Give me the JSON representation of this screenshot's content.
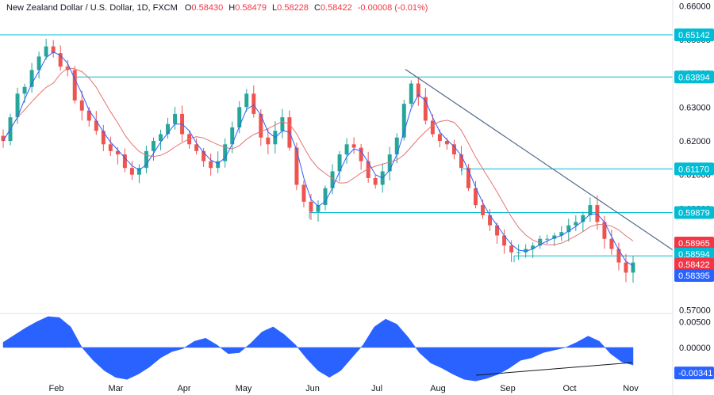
{
  "header": {
    "symbol": "New Zealand Dollar / U.S. Dollar, 1D, FXCM",
    "open_label": "O",
    "open": "0.58430",
    "high_label": "H",
    "high": "0.58479",
    "low_label": "L",
    "low": "0.58228",
    "close_label": "C",
    "close": "0.58422",
    "change": "-0.00008 (-0.01%)"
  },
  "colors": {
    "up": "#26a69a",
    "down": "#ef5350",
    "fast_ma": "#2962ff",
    "slow_ma": "#e57373",
    "hline": "#00bcd4",
    "trendline": "#4e6a8a",
    "osc": "#2962ff",
    "tag_level": "#00bcd4",
    "tag_slow": "#f23645",
    "tag_fast": "#2962ff"
  },
  "chart_data": [
    {
      "type": "candlestick",
      "title": "New Zealand Dollar / U.S. Dollar, 1D, FXCM",
      "x_ticks": [
        "Feb",
        "Mar",
        "Apr",
        "May",
        "Jun",
        "Jul",
        "Aug",
        "Sep",
        "Oct",
        "Nov"
      ],
      "y_ticks": [
        "0.66000",
        "0.65000",
        "0.64000",
        "0.63000",
        "0.62000",
        "0.61000",
        "0.60000",
        "0.59000",
        "0.58000",
        "0.57000"
      ],
      "ylim": [
        0.5696,
        0.6601
      ],
      "closes_approx": [
        0.62,
        0.627,
        0.634,
        0.636,
        0.641,
        0.645,
        0.648,
        0.646,
        0.642,
        0.641,
        0.632,
        0.629,
        0.626,
        0.623,
        0.619,
        0.617,
        0.616,
        0.612,
        0.61,
        0.612,
        0.617,
        0.62,
        0.622,
        0.625,
        0.628,
        0.622,
        0.619,
        0.617,
        0.614,
        0.612,
        0.614,
        0.619,
        0.624,
        0.63,
        0.634,
        0.628,
        0.621,
        0.619,
        0.623,
        0.627,
        0.618,
        0.607,
        0.602,
        0.599,
        0.601,
        0.606,
        0.611,
        0.616,
        0.619,
        0.618,
        0.614,
        0.609,
        0.607,
        0.611,
        0.616,
        0.621,
        0.631,
        0.637,
        0.633,
        0.626,
        0.622,
        0.62,
        0.619,
        0.616,
        0.612,
        0.606,
        0.601,
        0.598,
        0.595,
        0.592,
        0.589,
        0.587,
        0.587,
        0.588,
        0.589,
        0.591,
        0.591,
        0.592,
        0.593,
        0.595,
        0.596,
        0.598,
        0.601,
        0.596,
        0.591,
        0.588,
        0.584,
        0.581,
        0.584
      ],
      "horizontal_levels": [
        {
          "value": 0.65142,
          "label": "0.65142"
        },
        {
          "value": 0.63894,
          "label": "0.63894"
        },
        {
          "value": 0.6117,
          "label": "0.61170"
        },
        {
          "value": 0.59879,
          "label": "0.59879"
        },
        {
          "value": 0.58594,
          "label": "0.58594"
        }
      ],
      "trendline": {
        "from": {
          "x": "Jul",
          "y": 0.6412
        },
        "to": {
          "x": "Nov",
          "y": 0.5877
        }
      },
      "price_tags": [
        {
          "value": 0.58965,
          "label": "0.58965",
          "series": "slow_ma"
        },
        {
          "value": 0.58594,
          "label": "0.58594",
          "series": "level"
        },
        {
          "value": 0.58422,
          "label": "0.58422",
          "series": "close"
        },
        {
          "value": 0.58395,
          "label": "0.58395",
          "series": "fast_ma"
        }
      ]
    },
    {
      "type": "area",
      "y_ticks": [
        "0.00500",
        "0.00000",
        "-0.00500"
      ],
      "ylim": [
        -0.0063,
        0.0069
      ],
      "values_approx": [
        0.001,
        0.0024,
        0.0038,
        0.005,
        0.006,
        0.0058,
        0.004,
        0.0,
        -0.0025,
        -0.0045,
        -0.0058,
        -0.0062,
        -0.0052,
        -0.0038,
        -0.002,
        -0.0008,
        -0.0002,
        0.0012,
        0.0018,
        0.0005,
        -0.0012,
        -0.001,
        0.0008,
        0.003,
        0.004,
        0.0025,
        0.0005,
        -0.0022,
        -0.0045,
        -0.0058,
        -0.0045,
        -0.002,
        0.0005,
        0.004,
        0.0055,
        0.0045,
        0.002,
        -0.001,
        -0.003,
        -0.004,
        -0.0052,
        -0.0062,
        -0.0065,
        -0.006,
        -0.0052,
        -0.004,
        -0.0025,
        -0.002,
        -0.001,
        -0.0005,
        0.0,
        0.001,
        0.0022,
        0.0012,
        -0.0012,
        -0.0028,
        -0.0034
      ],
      "last_label": "-0.00341"
    }
  ]
}
